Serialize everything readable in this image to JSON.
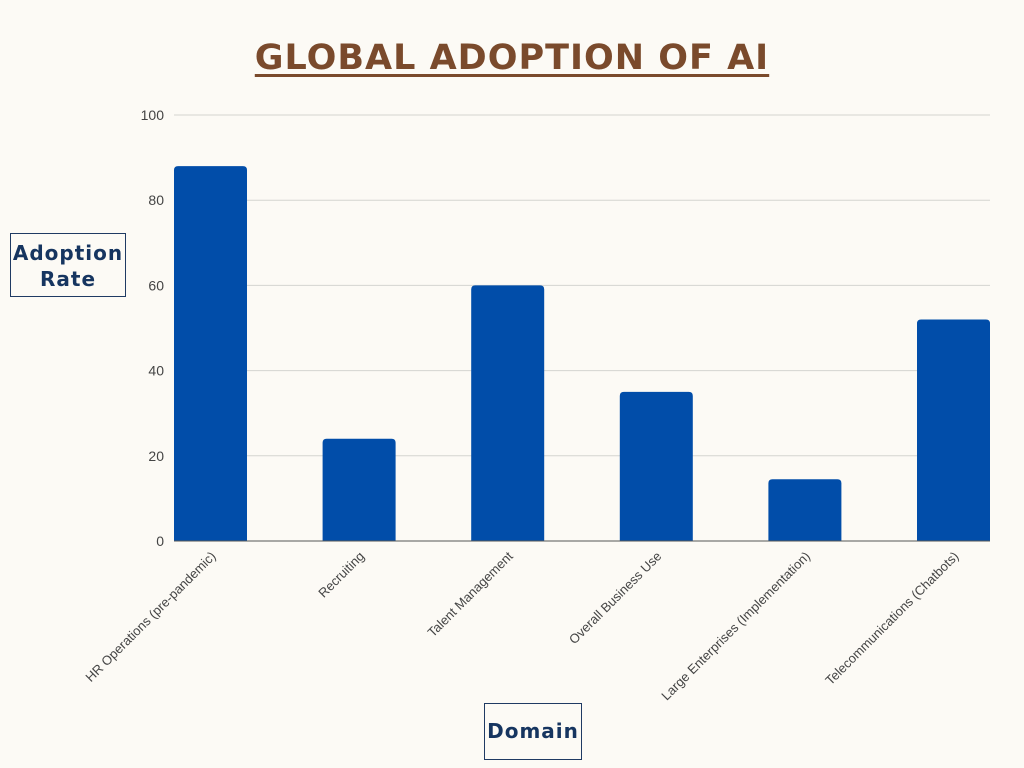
{
  "chart_data": {
    "type": "bar",
    "title": "GLOBAL ADOPTION OF AI",
    "xlabel": "Domain",
    "ylabel": "Adoption Rate",
    "categories": [
      "HR Operations (pre-pandemic)",
      "Recruiting",
      "Talent Management",
      "Overall Business Use",
      "Large Enterprises (Implementation)",
      "Telecommunications (Chatbots)"
    ],
    "values": [
      88,
      24,
      60,
      35,
      14.5,
      52
    ],
    "ylim": [
      0,
      100
    ],
    "yticks": [
      "0",
      "20",
      "40",
      "60",
      "80",
      "100"
    ],
    "grid": true,
    "legend": "none"
  },
  "colors": {
    "bar": "#014da9",
    "title": "#7a4a2c",
    "axis_label": "#163560",
    "grid": "#d4d4d0",
    "tick_text": "#444444",
    "background": "#fcfaf5"
  }
}
